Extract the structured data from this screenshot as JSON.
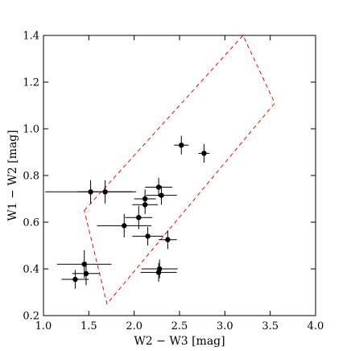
{
  "chart_data": {
    "type": "scatter",
    "xlabel": "W2 − W3 [mag]",
    "ylabel": "W1 − W2 [mag]",
    "xlim": [
      1.0,
      4.0
    ],
    "ylim": [
      0.2,
      1.4
    ],
    "x_ticks": [
      "1.0",
      "1.5",
      "2.0",
      "2.5",
      "3.0",
      "3.5",
      "4.0"
    ],
    "y_ticks": [
      "0.2",
      "0.4",
      "0.6",
      "0.8",
      "1.0",
      "1.2",
      "1.4"
    ],
    "grid": false,
    "marker_color": "#000000",
    "region_color": "#ff0000",
    "region_style": "dashed",
    "region_polygon": [
      {
        "x": 1.45,
        "y": 0.65
      },
      {
        "x": 3.2,
        "y": 1.4
      },
      {
        "x": 3.55,
        "y": 1.11
      },
      {
        "x": 1.7,
        "y": 0.25
      }
    ],
    "points": [
      {
        "x": 2.52,
        "y": 0.93,
        "xerr": 0.08,
        "yerr": 0.04
      },
      {
        "x": 2.77,
        "y": 0.895,
        "xerr": 0.06,
        "yerr": 0.04
      },
      {
        "x": 1.52,
        "y": 0.73,
        "xerr": 0.5,
        "yerr": 0.05
      },
      {
        "x": 1.68,
        "y": 0.73,
        "xerr": 0.3,
        "yerr": 0.05
      },
      {
        "x": 2.27,
        "y": 0.75,
        "xerr": 0.15,
        "yerr": 0.04
      },
      {
        "x": 2.3,
        "y": 0.715,
        "xerr": 0.17,
        "yerr": 0.04
      },
      {
        "x": 2.12,
        "y": 0.7,
        "xerr": 0.12,
        "yerr": 0.04
      },
      {
        "x": 2.12,
        "y": 0.675,
        "xerr": 0.14,
        "yerr": 0.04
      },
      {
        "x": 2.05,
        "y": 0.62,
        "xerr": 0.15,
        "yerr": 0.05
      },
      {
        "x": 1.89,
        "y": 0.585,
        "xerr": 0.3,
        "yerr": 0.05
      },
      {
        "x": 2.15,
        "y": 0.54,
        "xerr": 0.17,
        "yerr": 0.04
      },
      {
        "x": 2.37,
        "y": 0.525,
        "xerr": 0.1,
        "yerr": 0.04
      },
      {
        "x": 1.45,
        "y": 0.42,
        "xerr": 0.3,
        "yerr": 0.06
      },
      {
        "x": 1.47,
        "y": 0.38,
        "xerr": 0.15,
        "yerr": 0.05
      },
      {
        "x": 1.35,
        "y": 0.355,
        "xerr": 0.15,
        "yerr": 0.04
      },
      {
        "x": 2.28,
        "y": 0.4,
        "xerr": 0.2,
        "yerr": 0.04
      },
      {
        "x": 2.27,
        "y": 0.385,
        "xerr": 0.2,
        "yerr": 0.04
      }
    ]
  }
}
